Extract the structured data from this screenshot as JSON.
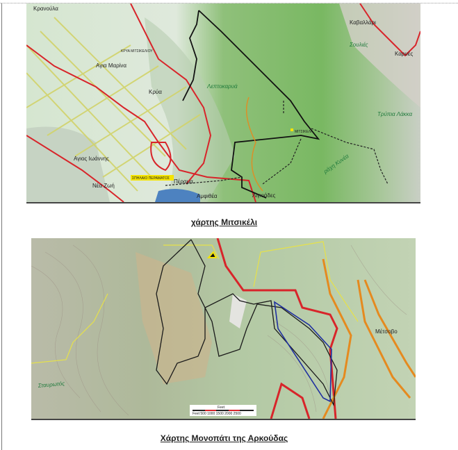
{
  "document": {
    "maps": [
      {
        "caption": "χάρτης Μιτσικέλι",
        "labels": {
          "kranoula": "Κρανούλα",
          "kavallari": "Καβαλλάρι",
          "karyes": "Καρυές",
          "agia_marina": "Αγια Μαρίνα",
          "krya_mitsikeliou": "ΚΡΥΑ ΜΙΤΣΙΚΕΛΙΟΥ",
          "krya": "Κρύα",
          "agios_ioannis": "Αγιος Ιωάννης",
          "nea_zoi": "Νέα Ζωή",
          "amfithea": "Αμφιθέα",
          "lygkiades": "Λιγκιάδες",
          "spilaio": "ΣΠΗΛΑΙΟ ΠΕΡΑΜΑΤΟΣ",
          "perama": "Πέραμα",
          "leptokarya": "Λεπτοκαρυά",
          "souliies": "Σουλιές",
          "rachi": "ράχη Κυνέα",
          "trypia_lakka": "Τρύπια Λάκκα",
          "mitsikeli": "ΜΙΤΣΙΚΕΛΙ"
        }
      },
      {
        "caption": "Χάρτης Μονοπάτι της Αρκούδας",
        "labels": {
          "metsovo": "Μέτσοβο",
          "stavrostos": "Σταυρωτός",
          "scale_title": "Feet",
          "scale_ticks": "Feet 500 1000 1500 2000 2500"
        }
      }
    ]
  },
  "colors": {
    "road": "#d8242a",
    "trail": "#111111",
    "route": "#1f2fa0",
    "track": "#e58a1f",
    "terrain": "#8fbf7a"
  }
}
